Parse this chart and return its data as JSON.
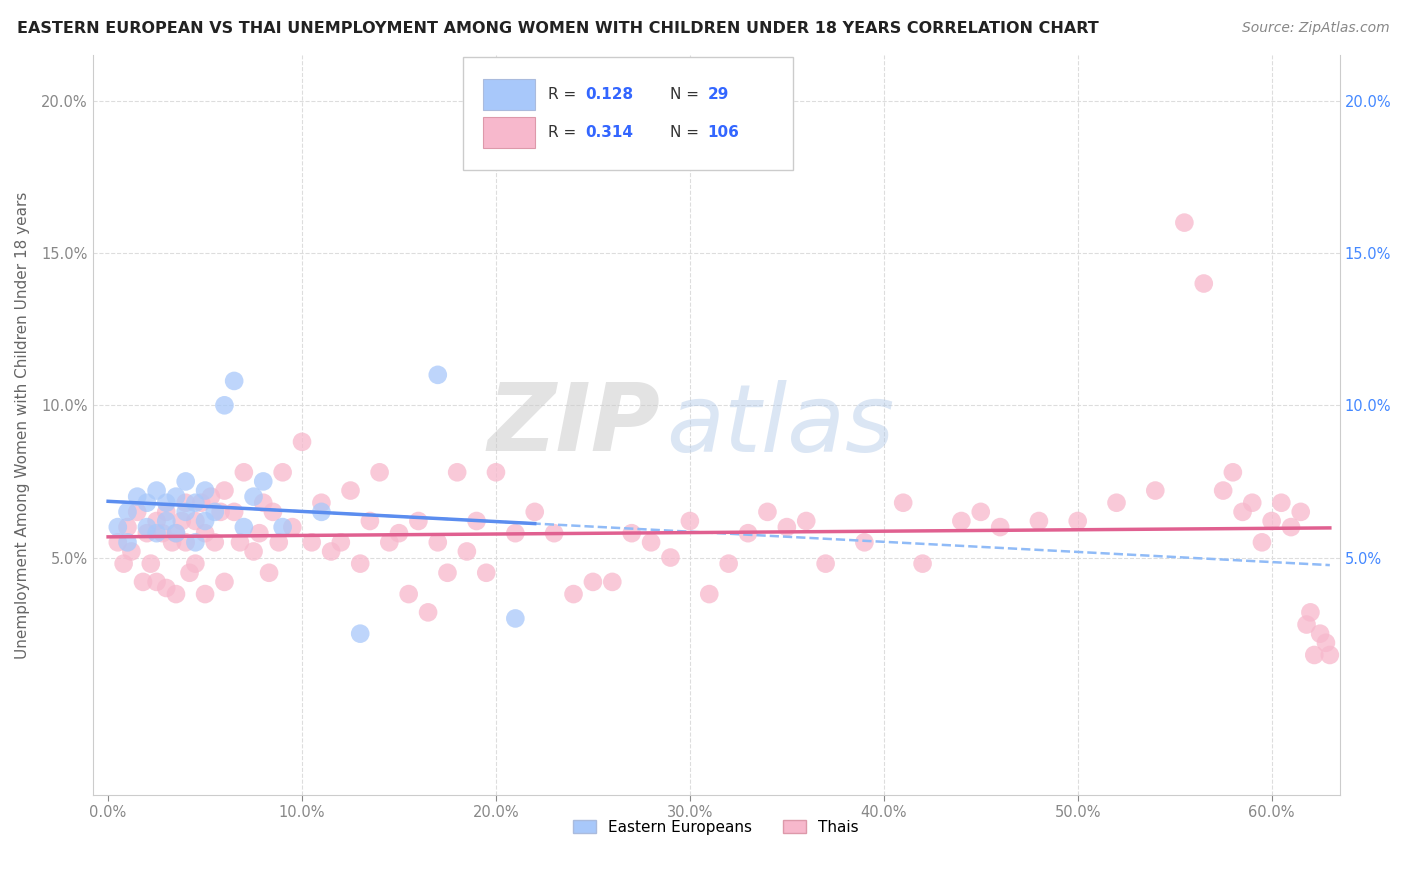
{
  "title": "EASTERN EUROPEAN VS THAI UNEMPLOYMENT AMONG WOMEN WITH CHILDREN UNDER 18 YEARS CORRELATION CHART",
  "source": "Source: ZipAtlas.com",
  "ylabel": "Unemployment Among Women with Children Under 18 years",
  "ee_color": "#a8c8fa",
  "ee_color_line": "#5b8def",
  "ee_color_dash": "#90bbf7",
  "thai_color": "#f7b8cc",
  "thai_color_line": "#e06090",
  "ee_R": 0.128,
  "ee_N": 29,
  "thai_R": 0.314,
  "thai_N": 106,
  "legend_label_ee": "Eastern Europeans",
  "legend_label_thai": "Thais",
  "watermark_zip": "ZIP",
  "watermark_atlas": "atlas",
  "background_color": "#ffffff",
  "grid_color": "#dddddd",
  "right_tick_color": "#4488ff",
  "left_tick_color": "#888888",
  "title_color": "#222222",
  "source_color": "#888888",
  "ylim": [
    -0.028,
    0.215
  ],
  "xlim": [
    -0.008,
    0.635
  ],
  "yticks": [
    0.05,
    0.1,
    0.15,
    0.2
  ],
  "xticks": [
    0.0,
    0.1,
    0.2,
    0.3,
    0.4,
    0.5,
    0.6
  ],
  "ee_x": [
    0.005,
    0.01,
    0.01,
    0.015,
    0.02,
    0.02,
    0.025,
    0.025,
    0.03,
    0.03,
    0.035,
    0.035,
    0.04,
    0.04,
    0.045,
    0.045,
    0.05,
    0.05,
    0.055,
    0.06,
    0.065,
    0.07,
    0.075,
    0.08,
    0.09,
    0.11,
    0.13,
    0.17,
    0.21
  ],
  "ee_y": [
    0.06,
    0.065,
    0.055,
    0.07,
    0.06,
    0.068,
    0.058,
    0.072,
    0.062,
    0.068,
    0.07,
    0.058,
    0.065,
    0.075,
    0.055,
    0.068,
    0.062,
    0.072,
    0.065,
    0.1,
    0.108,
    0.06,
    0.07,
    0.075,
    0.06,
    0.065,
    0.025,
    0.11,
    0.03
  ],
  "thai_x": [
    0.005,
    0.008,
    0.01,
    0.012,
    0.015,
    0.018,
    0.02,
    0.022,
    0.025,
    0.025,
    0.028,
    0.03,
    0.03,
    0.033,
    0.035,
    0.035,
    0.038,
    0.04,
    0.04,
    0.042,
    0.045,
    0.045,
    0.048,
    0.05,
    0.05,
    0.053,
    0.055,
    0.058,
    0.06,
    0.06,
    0.065,
    0.068,
    0.07,
    0.075,
    0.078,
    0.08,
    0.083,
    0.085,
    0.088,
    0.09,
    0.095,
    0.1,
    0.105,
    0.11,
    0.115,
    0.12,
    0.125,
    0.13,
    0.135,
    0.14,
    0.145,
    0.15,
    0.155,
    0.16,
    0.165,
    0.17,
    0.175,
    0.18,
    0.185,
    0.19,
    0.195,
    0.2,
    0.21,
    0.22,
    0.23,
    0.24,
    0.25,
    0.26,
    0.27,
    0.28,
    0.29,
    0.3,
    0.31,
    0.32,
    0.33,
    0.34,
    0.35,
    0.36,
    0.37,
    0.39,
    0.41,
    0.42,
    0.44,
    0.45,
    0.46,
    0.48,
    0.5,
    0.52,
    0.54,
    0.555,
    0.565,
    0.575,
    0.58,
    0.585,
    0.59,
    0.595,
    0.6,
    0.605,
    0.61,
    0.615,
    0.618,
    0.62,
    0.622,
    0.625,
    0.628,
    0.63
  ],
  "thai_y": [
    0.055,
    0.048,
    0.06,
    0.052,
    0.065,
    0.042,
    0.058,
    0.048,
    0.062,
    0.042,
    0.058,
    0.065,
    0.04,
    0.055,
    0.058,
    0.038,
    0.062,
    0.055,
    0.068,
    0.045,
    0.062,
    0.048,
    0.068,
    0.058,
    0.038,
    0.07,
    0.055,
    0.065,
    0.072,
    0.042,
    0.065,
    0.055,
    0.078,
    0.052,
    0.058,
    0.068,
    0.045,
    0.065,
    0.055,
    0.078,
    0.06,
    0.088,
    0.055,
    0.068,
    0.052,
    0.055,
    0.072,
    0.048,
    0.062,
    0.078,
    0.055,
    0.058,
    0.038,
    0.062,
    0.032,
    0.055,
    0.045,
    0.078,
    0.052,
    0.062,
    0.045,
    0.078,
    0.058,
    0.065,
    0.058,
    0.038,
    0.042,
    0.042,
    0.058,
    0.055,
    0.05,
    0.062,
    0.038,
    0.048,
    0.058,
    0.065,
    0.06,
    0.062,
    0.048,
    0.055,
    0.068,
    0.048,
    0.062,
    0.065,
    0.06,
    0.062,
    0.062,
    0.068,
    0.072,
    0.16,
    0.14,
    0.072,
    0.078,
    0.065,
    0.068,
    0.055,
    0.062,
    0.068,
    0.06,
    0.065,
    0.028,
    0.032,
    0.018,
    0.025,
    0.022,
    0.018
  ]
}
